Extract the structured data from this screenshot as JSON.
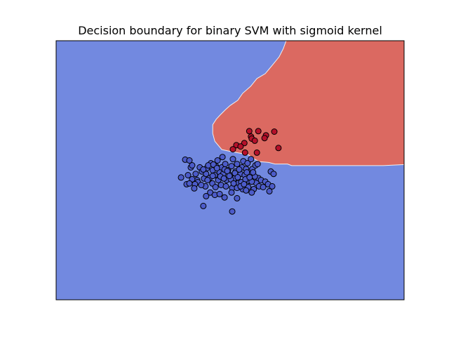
{
  "chart_data": {
    "type": "scatter",
    "title": "Decision boundary for binary SVM with sigmoid kernel",
    "xlabel": "",
    "ylabel": "",
    "xlim": [
      0,
      100
    ],
    "ylim": [
      0,
      100
    ],
    "grid": false,
    "ticks_visible": false,
    "colors": {
      "region_negative": "#7289e0",
      "region_positive": "#db6961",
      "boundary_line": "#f0f0f0",
      "class_0_point": "#4c5bc9",
      "class_1_point": "#b5102a",
      "point_edge": "#000000"
    },
    "decision_region_positive": [
      [
        66.1,
        100
      ],
      [
        100,
        100
      ],
      [
        100,
        52.2
      ],
      [
        94.0,
        51.8
      ],
      [
        67.7,
        51.8
      ],
      [
        66.5,
        52.4
      ],
      [
        62.9,
        52.4
      ],
      [
        61.1,
        53.0
      ],
      [
        58.5,
        53.3
      ],
      [
        57.3,
        54.1
      ],
      [
        55.3,
        55.9
      ],
      [
        53.2,
        56.5
      ],
      [
        50.0,
        57.3
      ],
      [
        47.6,
        58.0
      ],
      [
        45.6,
        61.2
      ],
      [
        45.0,
        64.2
      ],
      [
        45.0,
        67.6
      ],
      [
        46.0,
        69.7
      ],
      [
        47.2,
        71.4
      ],
      [
        48.6,
        73.3
      ],
      [
        50.0,
        75.0
      ],
      [
        52.2,
        77.0
      ],
      [
        53.6,
        79.7
      ],
      [
        55.9,
        82.4
      ],
      [
        57.7,
        85.4
      ],
      [
        60.1,
        87.3
      ],
      [
        62.1,
        90.5
      ],
      [
        64.1,
        93.8
      ],
      [
        65.3,
        97.0
      ],
      [
        66.1,
        100
      ]
    ],
    "series": [
      {
        "class": 0,
        "points": [
          [
            37.1,
            54.1
          ],
          [
            35.9,
            47.2
          ],
          [
            37.5,
            44.6
          ],
          [
            37.9,
            48.1
          ],
          [
            38.7,
            51.1
          ],
          [
            38.3,
            53.8
          ],
          [
            39.1,
            51.9
          ],
          [
            40.1,
            48.6
          ],
          [
            40.5,
            46.2
          ],
          [
            41.3,
            51.1
          ],
          [
            41.9,
            49.5
          ],
          [
            42.5,
            46.8
          ],
          [
            43.1,
            48.6
          ],
          [
            43.3,
            50.8
          ],
          [
            44.1,
            47.0
          ],
          [
            44.5,
            52.7
          ],
          [
            45.0,
            50.0
          ],
          [
            45.6,
            48.1
          ],
          [
            46.0,
            51.4
          ],
          [
            46.6,
            46.2
          ],
          [
            47.0,
            49.2
          ],
          [
            47.6,
            51.1
          ],
          [
            48.0,
            48.6
          ],
          [
            48.6,
            52.4
          ],
          [
            49.0,
            46.2
          ],
          [
            49.4,
            50.0
          ],
          [
            50.0,
            48.1
          ],
          [
            50.4,
            51.6
          ],
          [
            50.8,
            54.3
          ],
          [
            51.2,
            46.8
          ],
          [
            51.6,
            49.5
          ],
          [
            52.0,
            52.4
          ],
          [
            52.4,
            45.1
          ],
          [
            53.0,
            48.6
          ],
          [
            53.4,
            51.1
          ],
          [
            53.8,
            53.5
          ],
          [
            54.2,
            48.1
          ],
          [
            54.6,
            50.5
          ],
          [
            55.0,
            52.7
          ],
          [
            55.4,
            45.9
          ],
          [
            55.8,
            48.4
          ],
          [
            56.4,
            50.5
          ],
          [
            56.8,
            42.7
          ],
          [
            57.5,
            45.1
          ],
          [
            58.1,
            47.0
          ],
          [
            58.3,
            43.8
          ],
          [
            58.9,
            46.2
          ],
          [
            59.5,
            43.5
          ],
          [
            60.1,
            45.6
          ],
          [
            60.9,
            44.6
          ],
          [
            61.3,
            41.9
          ],
          [
            61.7,
            49.5
          ],
          [
            62.1,
            43.8
          ],
          [
            62.5,
            48.6
          ],
          [
            57.3,
            51.9
          ],
          [
            57.9,
            52.4
          ],
          [
            56.0,
            54.3
          ],
          [
            43.5,
            46.2
          ],
          [
            44.9,
            44.9
          ],
          [
            42.9,
            43.8
          ],
          [
            45.8,
            43.5
          ],
          [
            47.4,
            44.3
          ],
          [
            48.8,
            43.8
          ],
          [
            50.6,
            43.2
          ],
          [
            52.0,
            43.2
          ],
          [
            53.6,
            42.7
          ],
          [
            55.2,
            43.5
          ],
          [
            56.2,
            45.6
          ],
          [
            57.1,
            47.6
          ],
          [
            46.4,
            53.8
          ],
          [
            47.8,
            55.1
          ],
          [
            48.4,
            50.3
          ],
          [
            49.2,
            49.7
          ],
          [
            50.2,
            46.5
          ],
          [
            51.4,
            48.9
          ],
          [
            52.6,
            50.3
          ],
          [
            53.2,
            45.4
          ],
          [
            54.4,
            46.5
          ],
          [
            55.6,
            47.3
          ],
          [
            56.6,
            49.2
          ],
          [
            40.7,
            45.4
          ],
          [
            39.9,
            44.6
          ],
          [
            41.7,
            44.3
          ],
          [
            39.1,
            46.5
          ],
          [
            38.3,
            44.9
          ],
          [
            42.3,
            50.3
          ],
          [
            43.7,
            51.9
          ],
          [
            45.2,
            52.2
          ],
          [
            46.2,
            50.8
          ],
          [
            47.2,
            47.6
          ],
          [
            48.2,
            46.8
          ],
          [
            49.8,
            47.8
          ],
          [
            51.0,
            44.9
          ],
          [
            52.2,
            47.3
          ],
          [
            53.0,
            43.8
          ],
          [
            54.0,
            44.6
          ],
          [
            54.8,
            49.2
          ],
          [
            44.3,
            41.4
          ],
          [
            45.6,
            40.5
          ],
          [
            47.0,
            40.8
          ],
          [
            48.4,
            39.5
          ],
          [
            50.4,
            41.4
          ],
          [
            52.0,
            39.2
          ],
          [
            54.6,
            42.2
          ],
          [
            56.2,
            41.4
          ],
          [
            42.3,
            36.2
          ],
          [
            50.6,
            34.1
          ],
          [
            43.1,
            40.0
          ],
          [
            39.7,
            43.0
          ],
          [
            45.0,
            47.8
          ]
        ]
      },
      {
        "class": 1,
        "points": [
          [
            55.5,
            65.1
          ],
          [
            58.1,
            65.1
          ],
          [
            62.7,
            64.9
          ],
          [
            56.0,
            63.0
          ],
          [
            60.3,
            63.5
          ],
          [
            56.2,
            62.2
          ],
          [
            59.9,
            62.4
          ],
          [
            57.1,
            61.4
          ],
          [
            54.1,
            60.5
          ],
          [
            51.8,
            59.7
          ],
          [
            53.0,
            59.2
          ],
          [
            50.8,
            58.1
          ],
          [
            63.9,
            58.6
          ],
          [
            54.3,
            56.8
          ],
          [
            57.7,
            56.8
          ]
        ]
      }
    ]
  }
}
